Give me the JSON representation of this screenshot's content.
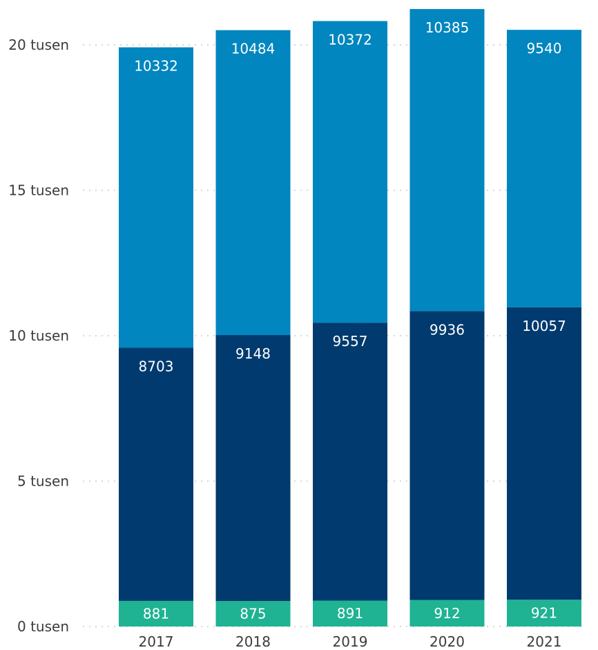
{
  "chart_data": {
    "type": "bar",
    "stacked": true,
    "categories": [
      "2017",
      "2018",
      "2019",
      "2020",
      "2021"
    ],
    "series": [
      {
        "color": "#1fb393",
        "values": [
          881,
          875,
          891,
          912,
          921
        ]
      },
      {
        "color": "#003a6e",
        "values": [
          8703,
          9148,
          9557,
          9936,
          10057
        ]
      },
      {
        "color": "#0186bf",
        "values": [
          10332,
          10484,
          10372,
          10385,
          9540
        ]
      }
    ],
    "y_ticks": [
      {
        "value": 0,
        "label": "0 tusen"
      },
      {
        "value": 5000,
        "label": "5 tusen"
      },
      {
        "value": 10000,
        "label": "10 tusen"
      },
      {
        "value": 15000,
        "label": "15 tusen"
      },
      {
        "value": 20000,
        "label": "20 tusen"
      }
    ],
    "ylim": [
      0,
      21000
    ],
    "grid": "horizontal-dotted",
    "legend": "none"
  }
}
